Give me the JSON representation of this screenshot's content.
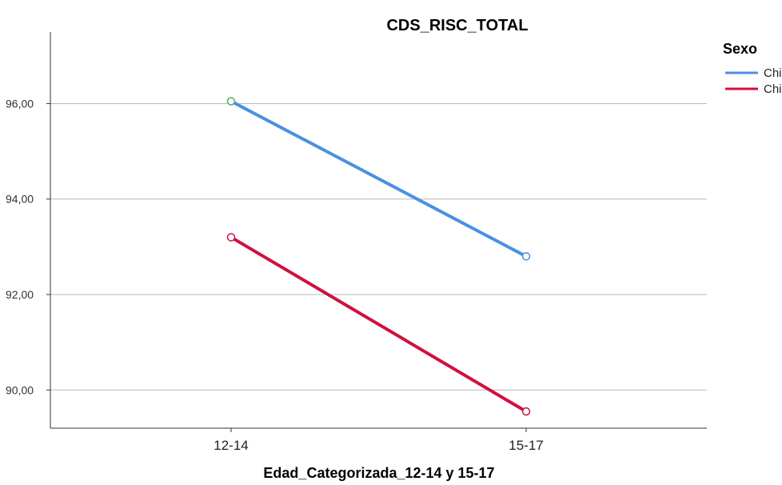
{
  "chart_data": {
    "type": "line",
    "title": "CDS_RISC_TOTAL",
    "xlabel": "Edad_Categorizada_12-14 y 15-17",
    "ylabel": "",
    "categories": [
      "12-14",
      "15-17"
    ],
    "yticks": [
      "90,00",
      "92,00",
      "94,00",
      "96,00"
    ],
    "ylim": [
      89.2,
      97.5
    ],
    "grid": true,
    "legend": {
      "title": "Sexo",
      "placement": "top-right"
    },
    "series": [
      {
        "name": "Chico",
        "values": [
          96.05,
          92.8
        ],
        "color": "#4a90e2",
        "marker_color": "#5aaa6a"
      },
      {
        "name": "Chica",
        "values": [
          93.2,
          89.55
        ],
        "color": "#d0103f",
        "marker_color": "#d0103f"
      }
    ]
  }
}
